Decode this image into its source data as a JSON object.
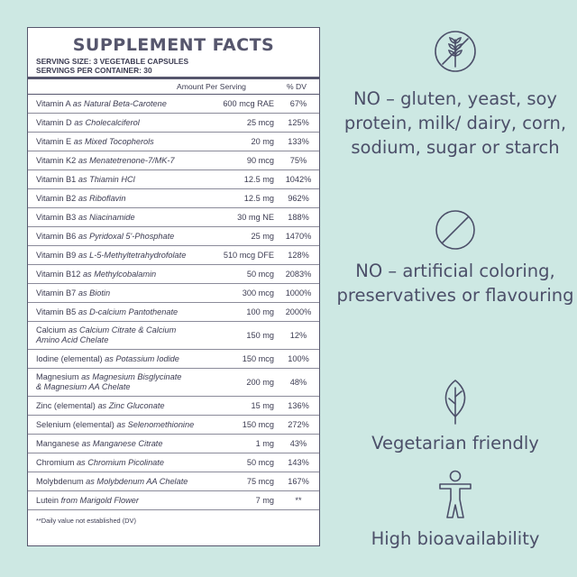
{
  "facts": {
    "title": "SUPPLEMENT FACTS",
    "serving_size": "SERVING SIZE: 3 VEGETABLE CAPSULES",
    "servings_per_container": "SERVINGS PER CONTAINER: 30",
    "col_amount": "Amount Per Serving",
    "col_dv": "% DV",
    "rows": [
      {
        "name": "Vitamin A",
        "source": "as Natural Beta-Carotene",
        "amount": "600 mcg RAE",
        "dv": "67%"
      },
      {
        "name": "Vitamin D",
        "source": "as Cholecalciferol",
        "amount": "25 mcg",
        "dv": "125%"
      },
      {
        "name": "Vitamin E",
        "source": "as Mixed Tocopherols",
        "amount": "20 mg",
        "dv": "133%"
      },
      {
        "name": "Vitamin K2",
        "source": "as Menatetrenone-7/MK-7",
        "amount": "90 mcg",
        "dv": "75%"
      },
      {
        "name": "Vitamin B1",
        "source": "as Thiamin HCl",
        "amount": "12.5 mg",
        "dv": "1042%"
      },
      {
        "name": "Vitamin B2",
        "source": "as Riboflavin",
        "amount": "12.5 mg",
        "dv": "962%"
      },
      {
        "name": "Vitamin B3",
        "source": "as Niacinamide",
        "amount": "30 mg NE",
        "dv": "188%"
      },
      {
        "name": "Vitamin B6",
        "source": "as Pyridoxal 5'-Phosphate",
        "amount": "25 mg",
        "dv": "1470%"
      },
      {
        "name": "Vitamin B9",
        "source": "as L-5-Methyltetrahydrofolate",
        "amount": "510 mcg DFE",
        "dv": "128%"
      },
      {
        "name": "Vitamin B12",
        "source": "as Methylcobalamin",
        "amount": "50 mcg",
        "dv": "2083%"
      },
      {
        "name": "Vitamin B7",
        "source": "as Biotin",
        "amount": "300 mcg",
        "dv": "1000%"
      },
      {
        "name": "Vitamin B5",
        "source": "as D-calcium Pantothenate",
        "amount": "100 mg",
        "dv": "2000%"
      },
      {
        "name": "Calcium",
        "source": "as Calcium Citrate & Calcium Amino Acid Chelate",
        "amount": "150 mg",
        "dv": "12%"
      },
      {
        "name": "Iodine (elemental)",
        "source": "as Potassium Iodide",
        "amount": "150 mcg",
        "dv": "100%"
      },
      {
        "name": "Magnesium",
        "source": "as Magnesium Bisglycinate & Magnesium AA Chelate",
        "amount": "200 mg",
        "dv": "48%"
      },
      {
        "name": "Zinc (elemental)",
        "source": "as Zinc Gluconate",
        "amount": "15 mg",
        "dv": "136%"
      },
      {
        "name": "Selenium (elemental)",
        "source": "as Selenomethionine",
        "amount": "150 mcg",
        "dv": "272%"
      },
      {
        "name": "Manganese",
        "source": "as Manganese Citrate",
        "amount": "1 mg",
        "dv": "43%"
      },
      {
        "name": "Chromium",
        "source": "as Chromium Picolinate",
        "amount": "50 mcg",
        "dv": "143%"
      },
      {
        "name": "Molybdenum",
        "source": "as Molybdenum AA Chelate",
        "amount": "75 mcg",
        "dv": "167%"
      },
      {
        "name": "Lutein",
        "source": "from Marigold Flower",
        "amount": "7 mg",
        "dv": "**"
      }
    ],
    "footnote": "**Daily value not established (DV)"
  },
  "features": [
    {
      "icon": "no-wheat-icon",
      "text": "NO – gluten, yeast, soy protein, milk/ dairy, corn, sodium, sugar or starch"
    },
    {
      "icon": "prohibited-icon",
      "text": "NO – artificial coloring, preservatives or flavouring"
    },
    {
      "icon": "leaf-icon",
      "text": "Vegetarian friendly"
    },
    {
      "icon": "person-icon",
      "text": "High bioavailability"
    }
  ],
  "colors": {
    "background": "#cde8e3",
    "panel_border": "#56566d",
    "text": "#4c4f69"
  }
}
